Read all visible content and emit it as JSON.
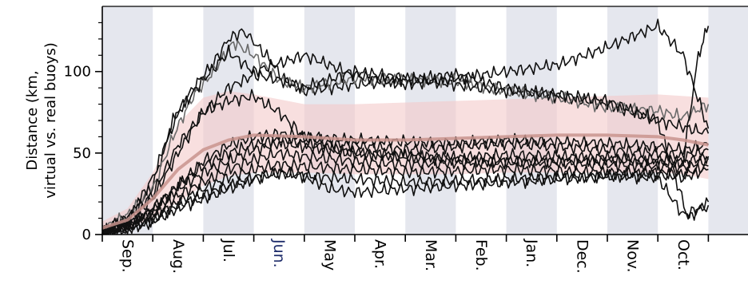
{
  "chart_data": {
    "type": "line",
    "ylabel_line1": "Distance (km,",
    "ylabel_line2": "virtual vs. real buoys)",
    "xlabel": "",
    "ylim": [
      0,
      140
    ],
    "yticks": [
      0,
      50,
      100
    ],
    "x_range": [
      0,
      12
    ],
    "months": [
      "Sep.",
      "Aug.",
      "Jul.",
      "Jun.",
      "May",
      "Apr.",
      "Mar.",
      "Feb.",
      "Jan.",
      "Dec.",
      "Nov.",
      "Oct."
    ],
    "highlighted_month": "Jun.",
    "highlight_color": "#1f2d6b",
    "shaded_months": [
      0,
      2,
      4,
      6,
      8,
      10,
      12
    ],
    "shade_color": "#e5e7ee",
    "band_color": "#f4caca",
    "mean_color": "#c9948e",
    "line_color": "#111111",
    "grey_line_color": "#6a6a6a",
    "mean": {
      "x": [
        0,
        0.5,
        1,
        1.5,
        2,
        2.5,
        3,
        4,
        5,
        6,
        7,
        8,
        9,
        10,
        11,
        11.5,
        12
      ],
      "y": [
        4,
        9,
        22,
        40,
        52,
        58,
        61,
        60,
        58,
        58,
        59,
        60,
        61,
        61,
        60,
        58,
        55
      ]
    },
    "band": {
      "x": [
        0,
        0.5,
        1,
        1.5,
        2,
        2.5,
        3,
        4,
        5,
        6,
        7,
        8,
        9,
        10,
        11,
        11.5,
        12
      ],
      "upper": [
        8,
        16,
        38,
        68,
        84,
        88,
        86,
        80,
        80,
        81,
        82,
        83,
        84,
        85,
        86,
        85,
        84
      ],
      "lower": [
        1,
        4,
        10,
        20,
        30,
        36,
        38,
        38,
        37,
        37,
        37,
        38,
        38,
        38,
        38,
        37,
        34
      ]
    },
    "series": [
      {
        "color": "black",
        "x": [
          0,
          0.5,
          1,
          1.4,
          1.8,
          2.2,
          2.5,
          2.8,
          3.0,
          3.3,
          3.6,
          4,
          5,
          6,
          7,
          8,
          9,
          10,
          10.5,
          11,
          11.5,
          12
        ],
        "y": [
          2,
          10,
          30,
          70,
          90,
          105,
          120,
          125,
          118,
          108,
          95,
          88,
          92,
          95,
          98,
          90,
          85,
          80,
          75,
          70,
          66,
          62
        ]
      },
      {
        "color": "grey",
        "x": [
          0,
          0.5,
          1,
          1.4,
          1.8,
          2.2,
          2.6,
          3.0,
          3.5,
          4,
          5,
          6,
          7,
          8,
          9,
          10,
          11,
          11.5,
          12
        ],
        "y": [
          3,
          12,
          28,
          60,
          85,
          100,
          118,
          110,
          95,
          90,
          96,
          95,
          94,
          88,
          84,
          78,
          76,
          72,
          80
        ]
      },
      {
        "color": "black",
        "x": [
          0,
          0.5,
          1,
          1.5,
          2,
          2.5,
          3,
          3.5,
          4,
          5,
          6,
          7,
          8,
          9,
          10,
          11,
          11.5,
          12
        ],
        "y": [
          2,
          8,
          35,
          75,
          95,
          112,
          100,
          105,
          110,
          98,
          92,
          96,
          100,
          104,
          115,
          128,
          110,
          65
        ]
      },
      {
        "color": "black",
        "x": [
          0,
          0.5,
          1,
          1.5,
          2,
          2.5,
          3,
          3.5,
          4,
          4.5,
          5,
          6,
          7,
          8,
          9,
          10,
          11,
          11.5,
          12
        ],
        "y": [
          3,
          10,
          25,
          55,
          75,
          82,
          85,
          75,
          60,
          56,
          55,
          52,
          54,
          56,
          54,
          52,
          50,
          48,
          52
        ]
      },
      {
        "color": "black",
        "x": [
          0,
          0.5,
          1,
          1.5,
          2,
          2.5,
          3,
          3.5,
          4,
          5,
          6,
          7,
          8,
          9,
          10,
          11,
          11.5,
          12
        ],
        "y": [
          2,
          6,
          15,
          30,
          45,
          55,
          60,
          62,
          60,
          58,
          57,
          56,
          58,
          57,
          56,
          54,
          52,
          55
        ]
      },
      {
        "color": "black",
        "x": [
          0,
          0.5,
          1,
          1.5,
          2,
          2.5,
          3,
          3.5,
          4,
          5,
          6,
          7,
          8,
          9,
          10,
          11,
          11.5,
          12
        ],
        "y": [
          1,
          5,
          14,
          28,
          38,
          45,
          52,
          56,
          54,
          50,
          48,
          47,
          49,
          48,
          47,
          46,
          44,
          48
        ]
      },
      {
        "color": "black",
        "x": [
          0,
          0.5,
          1,
          1.5,
          2,
          2.5,
          3,
          3.5,
          4,
          5,
          6,
          7,
          8,
          9,
          10,
          11,
          11.5,
          12
        ],
        "y": [
          2,
          6,
          12,
          24,
          32,
          40,
          46,
          50,
          48,
          45,
          43,
          44,
          45,
          44,
          43,
          42,
          41,
          46
        ]
      },
      {
        "color": "black",
        "x": [
          0,
          0.5,
          1,
          1.5,
          2,
          2.5,
          3,
          3.5,
          4,
          5,
          6,
          7,
          8,
          9,
          10,
          11,
          11.5,
          12
        ],
        "y": [
          1,
          4,
          10,
          20,
          28,
          35,
          40,
          43,
          42,
          40,
          38,
          39,
          40,
          39,
          38,
          38,
          37,
          42
        ]
      },
      {
        "color": "black",
        "x": [
          0,
          0.5,
          1,
          1.5,
          2,
          2.5,
          3,
          3.5,
          4,
          5,
          6,
          7,
          8,
          9,
          10,
          11,
          11.5,
          12
        ],
        "y": [
          1,
          4,
          9,
          18,
          24,
          30,
          35,
          38,
          36,
          34,
          32,
          33,
          34,
          35,
          36,
          37,
          35,
          40
        ]
      },
      {
        "color": "black",
        "x": [
          0,
          0.5,
          1,
          1.5,
          2,
          2.5,
          3,
          3.5,
          4,
          4.5,
          5,
          6,
          7,
          8,
          9,
          10,
          11,
          11.5,
          12
        ],
        "y": [
          1,
          3,
          8,
          16,
          22,
          28,
          34,
          38,
          36,
          28,
          26,
          28,
          30,
          32,
          34,
          36,
          35,
          12,
          18
        ]
      },
      {
        "color": "black",
        "x": [
          0,
          0.5,
          1,
          1.5,
          2,
          2.5,
          3,
          3.5,
          4,
          5,
          6,
          7,
          8,
          9,
          10,
          11,
          11.3,
          11.6,
          12
        ],
        "y": [
          2,
          8,
          22,
          50,
          75,
          90,
          98,
          95,
          90,
          100,
          96,
          92,
          88,
          86,
          82,
          70,
          40,
          10,
          20
        ]
      },
      {
        "color": "black",
        "x": [
          0,
          0.5,
          1,
          1.5,
          2,
          2.5,
          3,
          3.5,
          4,
          5,
          6,
          7,
          8,
          9,
          10,
          11,
          11.5,
          11.8,
          12
        ],
        "y": [
          2,
          6,
          16,
          30,
          42,
          50,
          55,
          58,
          56,
          50,
          48,
          46,
          44,
          45,
          46,
          44,
          45,
          110,
          128
        ]
      }
    ]
  }
}
